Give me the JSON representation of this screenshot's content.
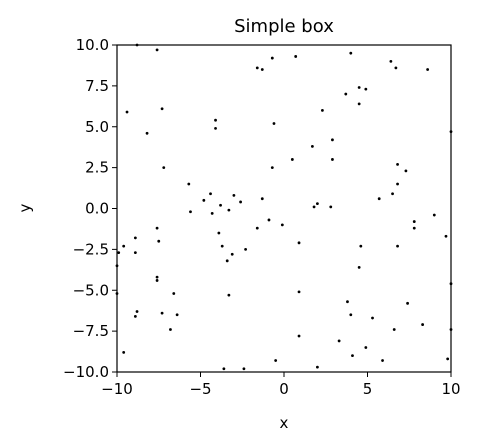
{
  "chart_data": {
    "type": "scatter",
    "title": "Simple box",
    "xlabel": "x",
    "ylabel": "y",
    "xlim": [
      -10,
      10
    ],
    "ylim": [
      -10,
      10
    ],
    "xticks": [
      -10,
      -5,
      0,
      5,
      10
    ],
    "xtick_labels": [
      "−10",
      "−5",
      "0",
      "5",
      "10"
    ],
    "yticks": [
      10.0,
      7.5,
      5.0,
      2.5,
      0.0,
      -2.5,
      -5.0,
      -7.5,
      -10.0
    ],
    "ytick_labels": [
      "10.0",
      "7.5",
      "5.0",
      "2.5",
      "0.0",
      "−2.5",
      "−5.0",
      "−7.5",
      "−10.0"
    ],
    "grid": false,
    "marker_color": "#000000",
    "points": [
      [
        -8.8,
        10.0
      ],
      [
        -7.6,
        9.7
      ],
      [
        -1.3,
        8.5
      ],
      [
        -0.7,
        9.2
      ],
      [
        0.7,
        9.3
      ],
      [
        -1.6,
        8.6
      ],
      [
        4.0,
        9.5
      ],
      [
        6.4,
        9.0
      ],
      [
        6.7,
        8.6
      ],
      [
        8.6,
        8.5
      ],
      [
        3.7,
        7.0
      ],
      [
        4.5,
        7.4
      ],
      [
        4.9,
        7.3
      ],
      [
        4.5,
        6.4
      ],
      [
        -9.4,
        5.9
      ],
      [
        -7.3,
        6.1
      ],
      [
        -8.2,
        4.6
      ],
      [
        -4.1,
        5.4
      ],
      [
        -4.1,
        4.9
      ],
      [
        -0.6,
        5.2
      ],
      [
        2.3,
        6.0
      ],
      [
        -7.2,
        2.5
      ],
      [
        1.7,
        3.8
      ],
      [
        2.9,
        4.2
      ],
      [
        2.9,
        3.0
      ],
      [
        0.5,
        3.0
      ],
      [
        -0.7,
        2.5
      ],
      [
        6.5,
        0.9
      ],
      [
        6.8,
        1.5
      ],
      [
        6.8,
        2.7
      ],
      [
        7.3,
        2.3
      ],
      [
        5.7,
        0.6
      ],
      [
        -5.7,
        1.5
      ],
      [
        -5.6,
        -0.2
      ],
      [
        -4.8,
        0.5
      ],
      [
        -4.4,
        0.9
      ],
      [
        -3.8,
        0.2
      ],
      [
        -3.3,
        -0.1
      ],
      [
        -3.0,
        0.8
      ],
      [
        -2.6,
        0.4
      ],
      [
        -4.3,
        -0.3
      ],
      [
        -3.9,
        -1.5
      ],
      [
        -3.7,
        -2.3
      ],
      [
        -3.4,
        -3.2
      ],
      [
        -3.1,
        -2.8
      ],
      [
        -2.3,
        -2.5
      ],
      [
        -1.6,
        -1.2
      ],
      [
        -1.3,
        0.6
      ],
      [
        -0.9,
        -0.7
      ],
      [
        -0.1,
        -1.0
      ],
      [
        1.8,
        0.1
      ],
      [
        2.0,
        0.3
      ],
      [
        2.8,
        0.1
      ],
      [
        0.9,
        -2.1
      ],
      [
        7.8,
        -0.8
      ],
      [
        7.8,
        -1.2
      ],
      [
        9.0,
        -0.4
      ],
      [
        9.7,
        -1.7
      ],
      [
        10.0,
        4.7
      ],
      [
        -9.6,
        -2.3
      ],
      [
        -9.9,
        -2.7
      ],
      [
        -8.9,
        -1.8
      ],
      [
        -7.6,
        -1.2
      ],
      [
        -7.5,
        -2.0
      ],
      [
        -8.9,
        -2.7
      ],
      [
        -10.0,
        -3.5
      ],
      [
        -10.0,
        -5.2
      ],
      [
        -7.6,
        -4.2
      ],
      [
        -7.6,
        -4.4
      ],
      [
        -6.6,
        -5.2
      ],
      [
        -8.8,
        -6.3
      ],
      [
        -8.9,
        -6.6
      ],
      [
        -7.3,
        -6.4
      ],
      [
        -6.4,
        -6.5
      ],
      [
        -6.8,
        -7.4
      ],
      [
        -9.6,
        -8.8
      ],
      [
        -3.3,
        -5.3
      ],
      [
        -3.6,
        -9.8
      ],
      [
        -2.4,
        -9.8
      ],
      [
        -0.5,
        -9.3
      ],
      [
        0.9,
        -5.1
      ],
      [
        0.9,
        -7.8
      ],
      [
        2.0,
        -9.7
      ],
      [
        3.3,
        -8.1
      ],
      [
        3.8,
        -5.7
      ],
      [
        4.0,
        -6.5
      ],
      [
        4.1,
        -9.0
      ],
      [
        4.5,
        -3.6
      ],
      [
        4.6,
        -2.3
      ],
      [
        4.9,
        -8.5
      ],
      [
        5.3,
        -6.7
      ],
      [
        5.9,
        -9.3
      ],
      [
        6.6,
        -7.4
      ],
      [
        6.8,
        -2.3
      ],
      [
        7.4,
        -5.8
      ],
      [
        8.3,
        -7.1
      ],
      [
        9.8,
        -9.2
      ],
      [
        10.0,
        -4.6
      ],
      [
        10.0,
        -7.4
      ]
    ]
  }
}
